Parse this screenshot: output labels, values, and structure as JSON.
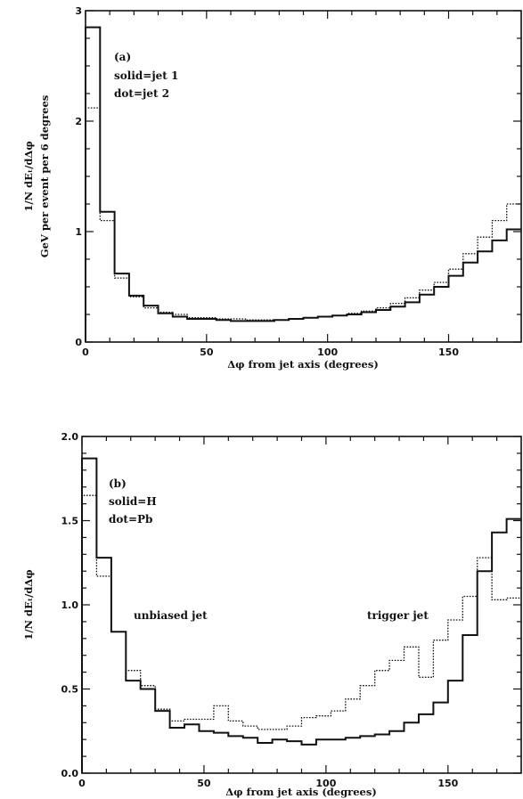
{
  "chart_data": [
    {
      "type": "line",
      "step": true,
      "panel_label": "(a)",
      "legend_lines": [
        "solid=jet 1",
        "dot=jet 2"
      ],
      "xlabel": "Δφ from jet axis (degrees)",
      "ylabel_lines": [
        "1/N dEₜ/dΔφ",
        "GeV per event per 6 degrees"
      ],
      "xlim": [
        0,
        180
      ],
      "ylim": [
        0,
        3
      ],
      "xticks": [
        0,
        50,
        100,
        150
      ],
      "yticks": [
        0,
        1,
        2,
        3
      ],
      "ytick_labels": [
        "0",
        "1",
        "2",
        "3"
      ],
      "bin_edges": [
        0,
        6,
        12,
        18,
        24,
        30,
        36,
        42,
        48,
        54,
        60,
        66,
        72,
        78,
        84,
        90,
        96,
        102,
        108,
        114,
        120,
        126,
        132,
        138,
        144,
        150,
        156,
        162,
        168,
        174,
        180
      ],
      "series": [
        {
          "name": "jet 1",
          "style": "solid",
          "values": [
            2.85,
            1.18,
            0.62,
            0.42,
            0.33,
            0.26,
            0.23,
            0.21,
            0.21,
            0.2,
            0.19,
            0.19,
            0.19,
            0.2,
            0.21,
            0.22,
            0.23,
            0.24,
            0.25,
            0.27,
            0.29,
            0.32,
            0.36,
            0.43,
            0.5,
            0.6,
            0.72,
            0.82,
            0.92,
            1.02
          ]
        },
        {
          "name": "jet 2",
          "style": "dot",
          "values": [
            2.12,
            1.1,
            0.58,
            0.41,
            0.31,
            0.27,
            0.25,
            0.22,
            0.22,
            0.21,
            0.21,
            0.2,
            0.2,
            0.2,
            0.21,
            0.22,
            0.23,
            0.24,
            0.26,
            0.28,
            0.31,
            0.35,
            0.4,
            0.47,
            0.54,
            0.66,
            0.8,
            0.95,
            1.1,
            1.25
          ]
        }
      ]
    },
    {
      "type": "line",
      "step": true,
      "panel_label": "(b)",
      "legend_lines": [
        "solid=H",
        "dot=Pb"
      ],
      "annotations": [
        "unbiased jet",
        "trigger jet"
      ],
      "xlabel": "Δφ from jet axis (degrees)",
      "ylabel_lines": [
        "1/N dEₜ/dΔφ"
      ],
      "xlim": [
        0,
        180
      ],
      "ylim": [
        0,
        2
      ],
      "xticks": [
        0,
        50,
        100,
        150
      ],
      "yticks": [
        0,
        0.5,
        1.0,
        1.5,
        2.0
      ],
      "ytick_labels": [
        "0.0",
        "0.5",
        "1.0",
        "1.5",
        "2.0"
      ],
      "bin_edges": [
        0,
        6,
        12,
        18,
        24,
        30,
        36,
        42,
        48,
        54,
        60,
        66,
        72,
        78,
        84,
        90,
        96,
        102,
        108,
        114,
        120,
        126,
        132,
        138,
        144,
        150,
        156,
        162,
        168,
        174,
        180
      ],
      "series": [
        {
          "name": "H",
          "style": "solid",
          "values": [
            1.87,
            1.28,
            0.84,
            0.55,
            0.5,
            0.37,
            0.27,
            0.29,
            0.25,
            0.24,
            0.22,
            0.21,
            0.18,
            0.2,
            0.19,
            0.17,
            0.2,
            0.2,
            0.21,
            0.22,
            0.23,
            0.25,
            0.3,
            0.35,
            0.42,
            0.55,
            0.82,
            1.2,
            1.43,
            1.51
          ]
        },
        {
          "name": "Pb",
          "style": "dot",
          "values": [
            1.65,
            1.17,
            0.84,
            0.61,
            0.52,
            0.38,
            0.31,
            0.32,
            0.32,
            0.4,
            0.31,
            0.28,
            0.26,
            0.26,
            0.28,
            0.33,
            0.34,
            0.37,
            0.44,
            0.52,
            0.61,
            0.67,
            0.75,
            0.57,
            0.79,
            0.91,
            1.05,
            1.28,
            1.03,
            1.04
          ]
        }
      ]
    }
  ]
}
